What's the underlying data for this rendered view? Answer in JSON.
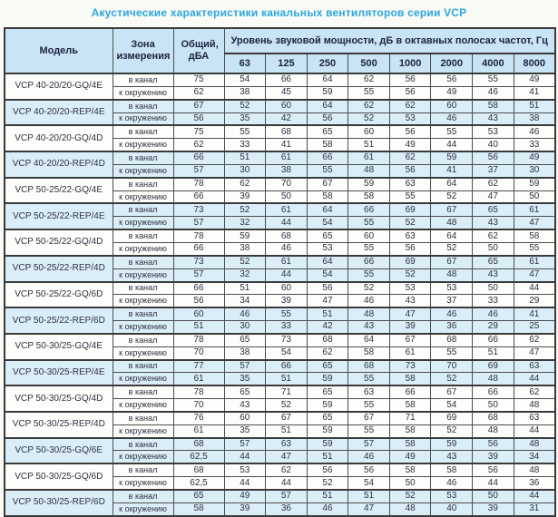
{
  "title": "Акустические характеристики канальных вентиляторов  серии VCP",
  "colors": {
    "title_blue": "#2aa7dd",
    "header_bg": "#c9e4f4",
    "row_highlight_bg": "#daeef8",
    "border_dark": "#3a3a3a",
    "text_dark": "#2f3140"
  },
  "table": {
    "headers": {
      "model": "Модель",
      "zone": "Зона измерения",
      "total": "Общий, дБА",
      "freq_group": "Уровень звуковой мощности, дБ в октавных полосах частот, Гц"
    },
    "frequencies": [
      "63",
      "125",
      "250",
      "500",
      "1000",
      "2000",
      "4000",
      "8000"
    ],
    "zone_labels": {
      "in_duct": "в канал",
      "to_env": "к окружению"
    },
    "rows": [
      {
        "model": "VCP 40-20/20-GQ/4E",
        "highlight": false,
        "in_duct": {
          "total": "75",
          "levels": [
            "54",
            "66",
            "64",
            "62",
            "56",
            "56",
            "55",
            "49"
          ]
        },
        "to_env": {
          "total": "62",
          "levels": [
            "38",
            "45",
            "59",
            "55",
            "56",
            "49",
            "46",
            "41"
          ]
        }
      },
      {
        "model": "VCP 40-20/20-REP/4E",
        "highlight": true,
        "in_duct": {
          "total": "67",
          "levels": [
            "52",
            "60",
            "64",
            "62",
            "62",
            "60",
            "58",
            "51"
          ]
        },
        "to_env": {
          "total": "56",
          "levels": [
            "35",
            "42",
            "56",
            "52",
            "53",
            "46",
            "43",
            "38"
          ]
        }
      },
      {
        "model": "VCP 40-20/20-GQ/4D",
        "highlight": false,
        "in_duct": {
          "total": "75",
          "levels": [
            "55",
            "68",
            "65",
            "60",
            "56",
            "55",
            "53",
            "46"
          ]
        },
        "to_env": {
          "total": "62",
          "levels": [
            "33",
            "41",
            "58",
            "51",
            "49",
            "44",
            "40",
            "33"
          ]
        }
      },
      {
        "model": "VCP 40-20/20-REP/4D",
        "highlight": true,
        "in_duct": {
          "total": "66",
          "levels": [
            "51",
            "61",
            "66",
            "61",
            "62",
            "59",
            "56",
            "49"
          ]
        },
        "to_env": {
          "total": "57",
          "levels": [
            "30",
            "38",
            "55",
            "48",
            "56",
            "41",
            "37",
            "30"
          ]
        }
      },
      {
        "model": "VCP 50-25/22-GQ/4E",
        "highlight": false,
        "in_duct": {
          "total": "78",
          "levels": [
            "62",
            "70",
            "67",
            "59",
            "63",
            "64",
            "62",
            "59"
          ]
        },
        "to_env": {
          "total": "66",
          "levels": [
            "39",
            "50",
            "58",
            "58",
            "55",
            "52",
            "47",
            "50"
          ]
        }
      },
      {
        "model": "VCP 50-25/22-REP/4E",
        "highlight": true,
        "in_duct": {
          "total": "73",
          "levels": [
            "52",
            "61",
            "64",
            "66",
            "69",
            "67",
            "65",
            "61"
          ]
        },
        "to_env": {
          "total": "57",
          "levels": [
            "32",
            "44",
            "54",
            "55",
            "52",
            "48",
            "43",
            "47"
          ]
        }
      },
      {
        "model": "VCP 50-25/22-GQ/4D",
        "highlight": false,
        "in_duct": {
          "total": "78",
          "levels": [
            "59",
            "68",
            "65",
            "60",
            "63",
            "64",
            "62",
            "58"
          ]
        },
        "to_env": {
          "total": "66",
          "levels": [
            "38",
            "46",
            "53",
            "55",
            "56",
            "52",
            "50",
            "55"
          ]
        }
      },
      {
        "model": "VCP 50-25/22-REP/4D",
        "highlight": true,
        "in_duct": {
          "total": "73",
          "levels": [
            "52",
            "61",
            "64",
            "66",
            "69",
            "67",
            "65",
            "61"
          ]
        },
        "to_env": {
          "total": "57",
          "levels": [
            "32",
            "44",
            "54",
            "55",
            "52",
            "48",
            "43",
            "47"
          ]
        }
      },
      {
        "model": "VCP 50-25/22-GQ/6D",
        "highlight": false,
        "in_duct": {
          "total": "66",
          "levels": [
            "51",
            "60",
            "56",
            "52",
            "53",
            "53",
            "50",
            "44"
          ]
        },
        "to_env": {
          "total": "56",
          "levels": [
            "34",
            "39",
            "47",
            "46",
            "43",
            "37",
            "33",
            "29"
          ]
        }
      },
      {
        "model": "VCP 50-25/22-REP/6D",
        "highlight": true,
        "in_duct": {
          "total": "60",
          "levels": [
            "46",
            "55",
            "51",
            "48",
            "47",
            "46",
            "46",
            "41"
          ]
        },
        "to_env": {
          "total": "51",
          "levels": [
            "30",
            "33",
            "42",
            "43",
            "39",
            "36",
            "29",
            "25"
          ]
        }
      },
      {
        "model": "VCP 50-30/25-GQ/4E",
        "highlight": false,
        "in_duct": {
          "total": "78",
          "levels": [
            "65",
            "73",
            "68",
            "64",
            "67",
            "68",
            "66",
            "62"
          ]
        },
        "to_env": {
          "total": "70",
          "levels": [
            "38",
            "54",
            "62",
            "58",
            "61",
            "55",
            "51",
            "47"
          ]
        }
      },
      {
        "model": "VCP 50-30/25-REP/4E",
        "highlight": true,
        "in_duct": {
          "total": "77",
          "levels": [
            "57",
            "66",
            "65",
            "68",
            "73",
            "70",
            "69",
            "63"
          ]
        },
        "to_env": {
          "total": "61",
          "levels": [
            "35",
            "51",
            "59",
            "55",
            "58",
            "52",
            "48",
            "44"
          ]
        }
      },
      {
        "model": "VCP 50-30/25-GQ/4D",
        "highlight": false,
        "in_duct": {
          "total": "78",
          "levels": [
            "65",
            "71",
            "65",
            "63",
            "66",
            "67",
            "66",
            "62"
          ]
        },
        "to_env": {
          "total": "70",
          "levels": [
            "43",
            "52",
            "59",
            "55",
            "58",
            "54",
            "50",
            "48"
          ]
        }
      },
      {
        "model": "VCP 50-30/25-REP/4D",
        "highlight": false,
        "in_duct": {
          "total": "76",
          "levels": [
            "60",
            "67",
            "65",
            "67",
            "71",
            "69",
            "68",
            "63"
          ]
        },
        "to_env": {
          "total": "61",
          "levels": [
            "35",
            "51",
            "59",
            "55",
            "58",
            "52",
            "48",
            "44"
          ]
        }
      },
      {
        "model": "VCP 50-30/25-GQ/6E",
        "highlight": true,
        "in_duct": {
          "total": "68",
          "levels": [
            "57",
            "63",
            "59",
            "57",
            "58",
            "59",
            "56",
            "48"
          ]
        },
        "to_env": {
          "total": "62,5",
          "levels": [
            "44",
            "47",
            "51",
            "46",
            "49",
            "43",
            "39",
            "34"
          ]
        }
      },
      {
        "model": "VCP 50-30/25-GQ/6D",
        "highlight": false,
        "in_duct": {
          "total": "68",
          "levels": [
            "53",
            "62",
            "56",
            "56",
            "58",
            "58",
            "56",
            "48"
          ]
        },
        "to_env": {
          "total": "62,5",
          "levels": [
            "44",
            "44",
            "52",
            "54",
            "50",
            "46",
            "44",
            "36"
          ]
        }
      },
      {
        "model": "VCP 50-30/25-REP/6D",
        "highlight": true,
        "in_duct": {
          "total": "65",
          "levels": [
            "49",
            "57",
            "51",
            "51",
            "52",
            "53",
            "50",
            "44"
          ]
        },
        "to_env": {
          "total": "58",
          "levels": [
            "39",
            "36",
            "46",
            "47",
            "48",
            "40",
            "39",
            "31"
          ]
        }
      }
    ]
  }
}
